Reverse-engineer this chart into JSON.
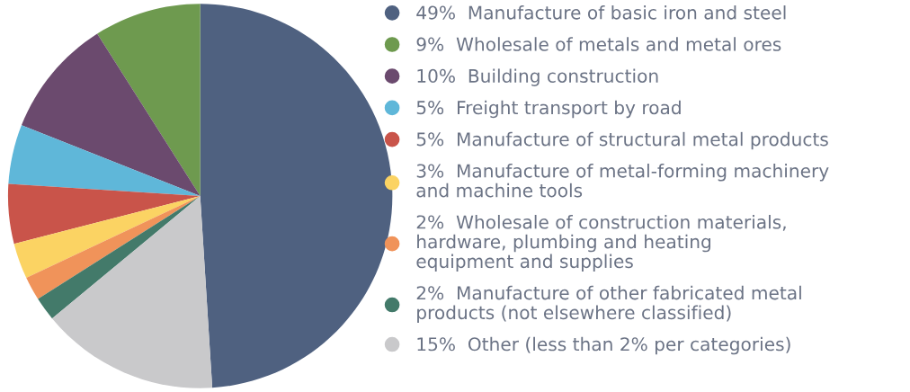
{
  "chart_data": {
    "type": "pie",
    "legend": "right",
    "categories": [
      "Manufacture of basic iron and steel",
      "Wholesale of metals and metal ores",
      "Building construction",
      "Freight transport by road",
      "Manufacture of structural metal products",
      "Manufacture of metal-forming machinery\nand machine tools",
      "Wholesale of construction materials,\nhardware, plumbing and heating\nequipment and supplies",
      "Manufacture of other fabricated metal\nproducts (not elsewhere classified)",
      "Other (less than 2% per categories)"
    ],
    "values": [
      49,
      9,
      10,
      5,
      5,
      3,
      2,
      2,
      15
    ],
    "value_labels": [
      "49%",
      "9%",
      "10%",
      "5%",
      "5%",
      "3%",
      "2%",
      "2%",
      "15%"
    ],
    "colors": [
      "#4f6180",
      "#6e9a4f",
      "#6b4a6e",
      "#5fb7d9",
      "#c9544a",
      "#fbd363",
      "#f0935a",
      "#437a6a",
      "#c9c9cb"
    ]
  }
}
